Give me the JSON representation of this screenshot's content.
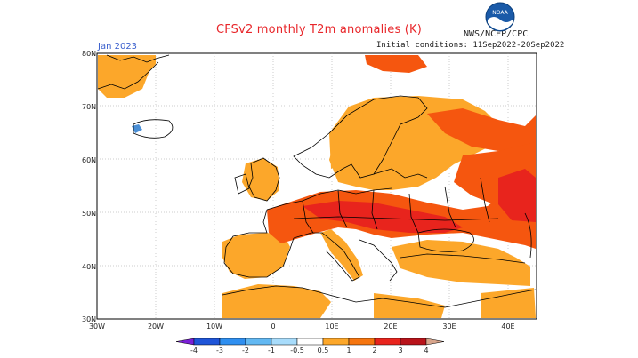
{
  "title": "CFSv2 monthly T2m anomalies (K)",
  "valid_month": "Jan 2023",
  "initial_conditions": "Initial conditions: 11Sep2022-20Sep2022",
  "agency": "NWS/NCEP/CPC",
  "logo_text": "NOAA",
  "lat_labels": [
    "80N",
    "70N",
    "60N",
    "50N",
    "40N",
    "30N"
  ],
  "lon_labels": [
    "30W",
    "20W",
    "10W",
    "0",
    "10E",
    "20E",
    "30E",
    "40E"
  ],
  "colorbar": {
    "ticks": [
      "-4",
      "-3",
      "-2",
      "-1",
      "-0.5",
      "0.5",
      "1",
      "2",
      "3",
      "4"
    ],
    "colors": [
      "#7a1fd6",
      "#1f55d8",
      "#2f8ff0",
      "#62b8f2",
      "#a8dcfb",
      "#ffffff",
      "#fca72a",
      "#f5750f",
      "#e8241d",
      "#b8131a",
      "#d8a58c"
    ]
  },
  "colors": {
    "weak_warm": "#fca72a",
    "moderate_warm": "#f5560f",
    "strong_warm": "#e8241d",
    "cold": "#4a8fd6",
    "land_outline": "#000000",
    "grid": "#9a9a9a"
  }
}
